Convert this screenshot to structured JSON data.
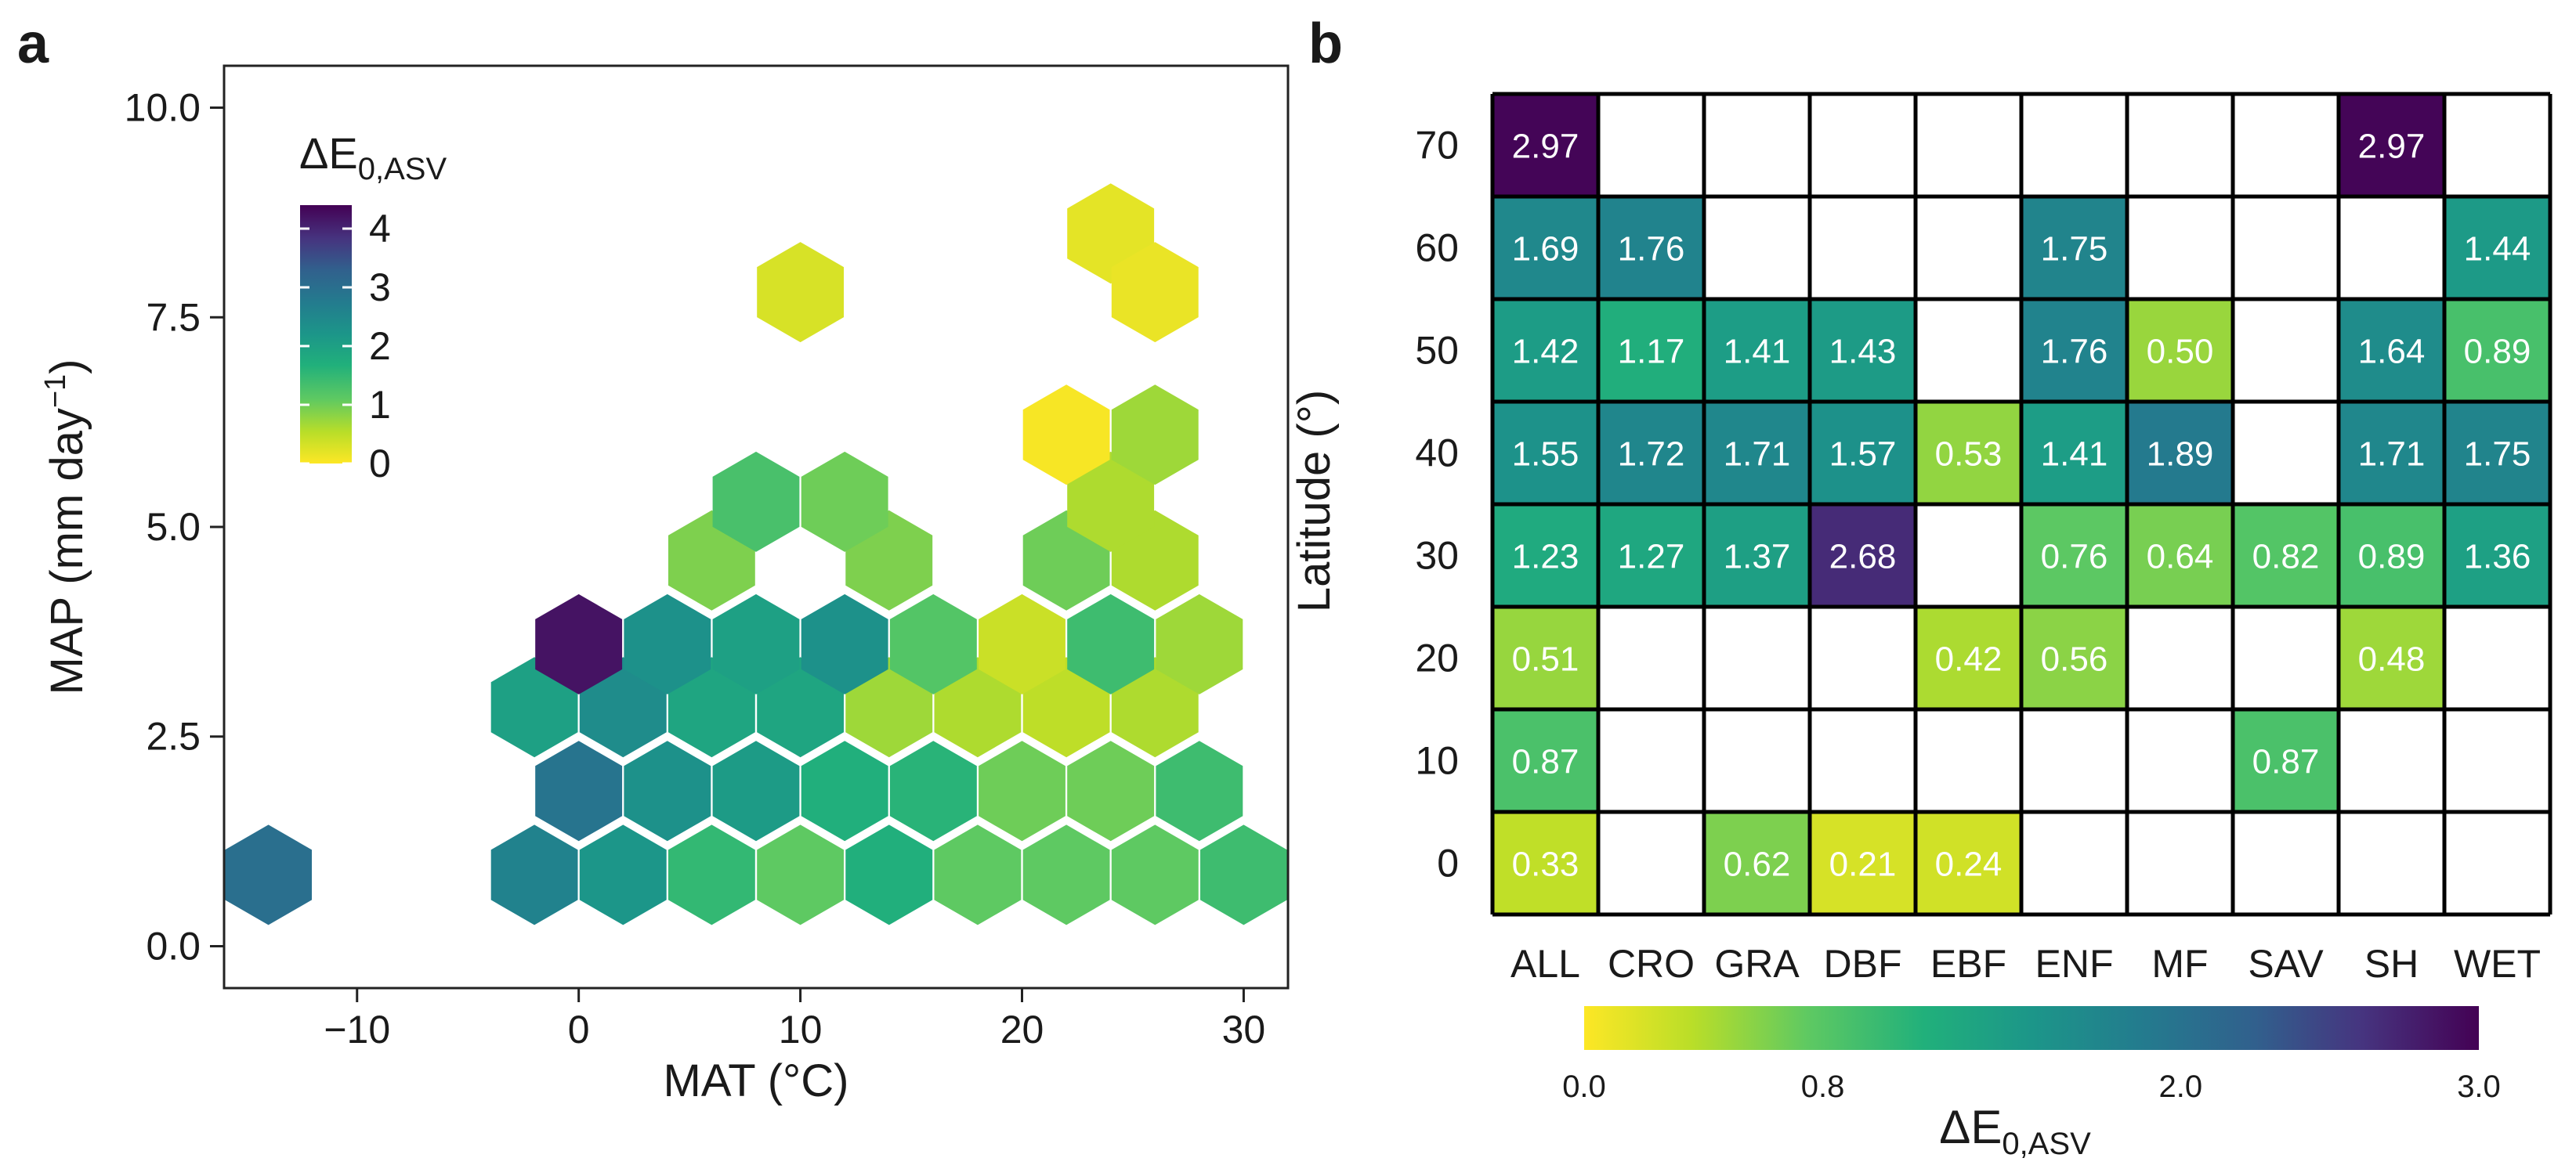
{
  "panels": {
    "a": "a",
    "b": "b"
  },
  "chart_data": [
    {
      "type": "heatmap",
      "subtype": "hexbin",
      "panel": "a",
      "xlabel": "MAT (°C)",
      "ylabel_main": "MAP (mm day",
      "ylabel_sup": "−1",
      "ylabel_close": ")",
      "xlim": [
        -16,
        32
      ],
      "ylim": [
        -0.5,
        10.5
      ],
      "x_ticks": [
        -10,
        0,
        10,
        20,
        30
      ],
      "x_tick_labels": [
        "−10",
        "0",
        "10",
        "20",
        "30"
      ],
      "y_ticks": [
        0,
        2.5,
        5,
        7.5,
        10
      ],
      "y_tick_labels": [
        "0.0",
        "2.5",
        "5.0",
        "7.5",
        "10.0"
      ],
      "legend": {
        "title_main": "ΔE",
        "title_sub": "0,ASV",
        "ticks": [
          0,
          1,
          2,
          3,
          4
        ],
        "tick_labels": [
          "0",
          "1",
          "2",
          "3",
          "4"
        ],
        "range": [
          0,
          4.4
        ]
      },
      "hexes": [
        {
          "x": -14,
          "y": 0.85,
          "value": 3.0
        },
        {
          "x": -2,
          "y": 0.85,
          "value": 2.6
        },
        {
          "x": 2,
          "y": 0.85,
          "value": 2.2
        },
        {
          "x": 6,
          "y": 0.85,
          "value": 1.5
        },
        {
          "x": 10,
          "y": 0.85,
          "value": 1.1
        },
        {
          "x": 14,
          "y": 0.85,
          "value": 1.7
        },
        {
          "x": 18,
          "y": 0.85,
          "value": 1.1
        },
        {
          "x": 22,
          "y": 0.85,
          "value": 1.1
        },
        {
          "x": 26,
          "y": 0.85,
          "value": 1.1
        },
        {
          "x": 30,
          "y": 0.85,
          "value": 1.4
        },
        {
          "x": 0,
          "y": 1.85,
          "value": 2.9
        },
        {
          "x": 4,
          "y": 1.85,
          "value": 2.3
        },
        {
          "x": 8,
          "y": 1.85,
          "value": 2.1
        },
        {
          "x": 12,
          "y": 1.85,
          "value": 1.7
        },
        {
          "x": 16,
          "y": 1.85,
          "value": 1.6
        },
        {
          "x": 20,
          "y": 1.85,
          "value": 1.0
        },
        {
          "x": 24,
          "y": 1.85,
          "value": 1.0
        },
        {
          "x": 28,
          "y": 1.85,
          "value": 1.4
        },
        {
          "x": -2,
          "y": 2.85,
          "value": 2.0
        },
        {
          "x": 2,
          "y": 2.85,
          "value": 2.4
        },
        {
          "x": 6,
          "y": 2.85,
          "value": 1.9
        },
        {
          "x": 10,
          "y": 2.85,
          "value": 1.9
        },
        {
          "x": 14,
          "y": 2.85,
          "value": 0.7
        },
        {
          "x": 18,
          "y": 2.85,
          "value": 0.6
        },
        {
          "x": 22,
          "y": 2.85,
          "value": 0.5
        },
        {
          "x": 26,
          "y": 2.85,
          "value": 0.6
        },
        {
          "x": 0,
          "y": 3.6,
          "value": 4.2
        },
        {
          "x": 4,
          "y": 3.6,
          "value": 2.3
        },
        {
          "x": 8,
          "y": 3.6,
          "value": 2.0
        },
        {
          "x": 12,
          "y": 3.6,
          "value": 2.3
        },
        {
          "x": 16,
          "y": 3.6,
          "value": 1.2
        },
        {
          "x": 20,
          "y": 3.6,
          "value": 0.4
        },
        {
          "x": 24,
          "y": 3.6,
          "value": 1.4
        },
        {
          "x": 28,
          "y": 3.6,
          "value": 0.7
        },
        {
          "x": 6,
          "y": 4.6,
          "value": 0.9
        },
        {
          "x": 14,
          "y": 4.6,
          "value": 0.9
        },
        {
          "x": 22,
          "y": 4.6,
          "value": 1.0
        },
        {
          "x": 26,
          "y": 4.6,
          "value": 0.6
        },
        {
          "x": 8,
          "y": 5.3,
          "value": 1.3
        },
        {
          "x": 12,
          "y": 5.3,
          "value": 1.0
        },
        {
          "x": 24,
          "y": 5.3,
          "value": 0.6
        },
        {
          "x": 22,
          "y": 6.1,
          "value": 0.05
        },
        {
          "x": 26,
          "y": 6.1,
          "value": 0.7
        },
        {
          "x": 10,
          "y": 7.8,
          "value": 0.3
        },
        {
          "x": 24,
          "y": 8.5,
          "value": 0.2
        },
        {
          "x": 26,
          "y": 7.8,
          "value": 0.15
        }
      ]
    },
    {
      "type": "heatmap",
      "panel": "b",
      "ylabel": "Latitude (°)",
      "categories": [
        "ALL",
        "CRO",
        "GRA",
        "DBF",
        "EBF",
        "ENF",
        "MF",
        "SAV",
        "SH",
        "WET"
      ],
      "rows": [
        "70",
        "60",
        "50",
        "40",
        "30",
        "20",
        "10",
        "0"
      ],
      "values": [
        [
          2.97,
          null,
          null,
          null,
          null,
          null,
          null,
          null,
          2.97,
          null
        ],
        [
          1.69,
          1.76,
          null,
          null,
          null,
          1.75,
          null,
          null,
          null,
          1.44
        ],
        [
          1.42,
          1.17,
          1.41,
          1.43,
          null,
          1.76,
          0.5,
          null,
          1.64,
          0.89
        ],
        [
          1.55,
          1.72,
          1.71,
          1.57,
          0.53,
          1.41,
          1.89,
          null,
          1.71,
          1.75
        ],
        [
          1.23,
          1.27,
          1.37,
          2.68,
          null,
          0.76,
          0.64,
          0.82,
          0.89,
          1.36
        ],
        [
          0.51,
          null,
          null,
          null,
          0.42,
          0.56,
          null,
          null,
          0.48,
          null
        ],
        [
          0.87,
          null,
          null,
          null,
          null,
          null,
          null,
          0.87,
          null,
          null
        ],
        [
          0.33,
          null,
          0.62,
          0.21,
          0.24,
          null,
          null,
          null,
          null,
          null
        ]
      ],
      "labels": [
        [
          "2.97",
          "",
          "",
          "",
          "",
          "",
          "",
          "",
          "2.97",
          ""
        ],
        [
          "1.69",
          "1.76",
          "",
          "",
          "",
          "1.75",
          "",
          "",
          "",
          "1.44"
        ],
        [
          "1.42",
          "1.17",
          "1.41",
          "1.43",
          "",
          "1.76",
          "0.50",
          "",
          "1.64",
          "0.89"
        ],
        [
          "1.55",
          "1.72",
          "1.71",
          "1.57",
          "0.53",
          "1.41",
          "1.89",
          "",
          "1.71",
          "1.75"
        ],
        [
          "1.23",
          "1.27",
          "1.37",
          "2.68",
          "",
          "0.76",
          "0.64",
          "0.82",
          "0.89",
          "1.36"
        ],
        [
          "0.51",
          "",
          "",
          "",
          "0.42",
          "0.56",
          "",
          "",
          "0.48",
          ""
        ],
        [
          "0.87",
          "",
          "",
          "",
          "",
          "",
          "",
          "0.87",
          "",
          ""
        ],
        [
          "0.33",
          "",
          "0.62",
          "0.21",
          "0.24",
          "",
          "",
          "",
          "",
          ""
        ]
      ],
      "colorbar": {
        "title_main": "ΔE",
        "title_sub": "0,ASV",
        "ticks": [
          0.0,
          0.8,
          2.0,
          3.0
        ],
        "tick_labels": [
          "0.0",
          "0.8",
          "2.0",
          "3.0"
        ],
        "range": [
          0,
          3.0
        ]
      }
    }
  ]
}
